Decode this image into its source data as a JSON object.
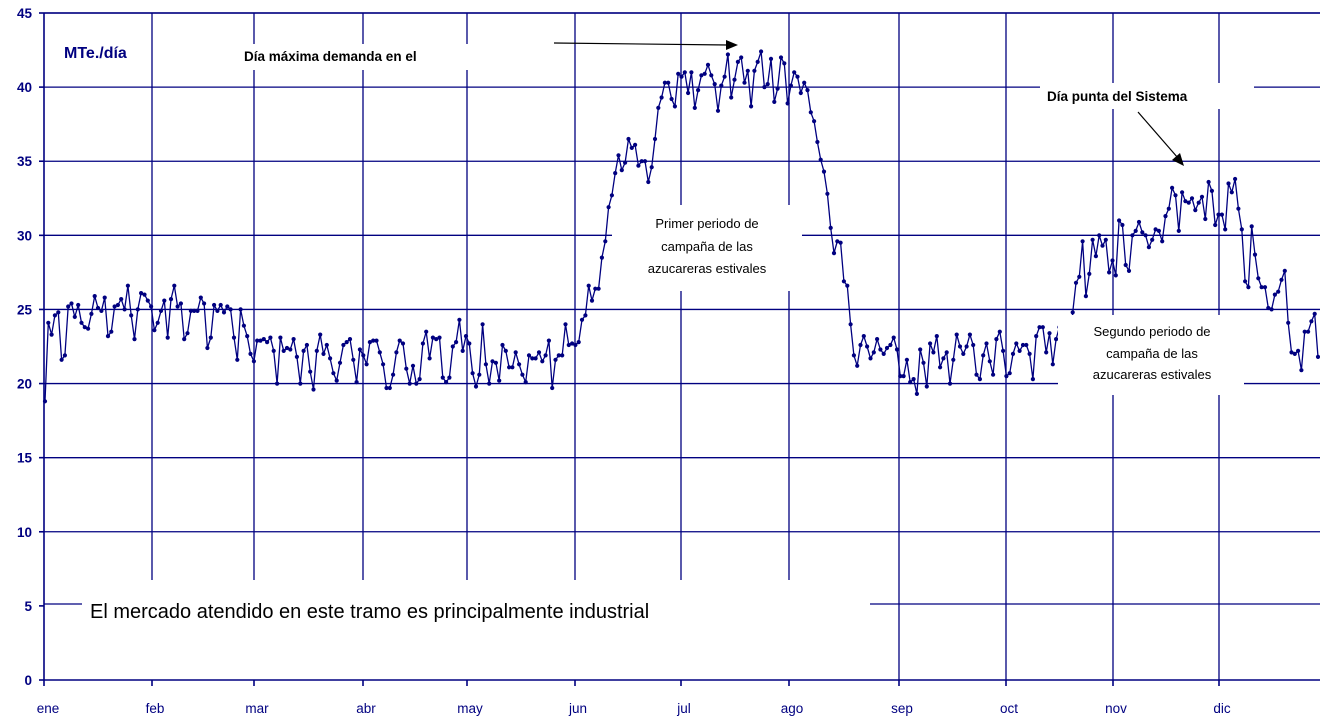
{
  "chart_data": {
    "type": "line",
    "title": "",
    "ylabel": "MTe./día",
    "xlabel": "",
    "ylim": [
      0,
      45
    ],
    "yticks": [
      0,
      5,
      10,
      15,
      20,
      25,
      30,
      35,
      40,
      45
    ],
    "categories": [
      "ene",
      "feb",
      "mar",
      "abr",
      "may",
      "jun",
      "jul",
      "ago",
      "sep",
      "oct",
      "nov",
      "dic"
    ],
    "grid": true,
    "legend": "none",
    "series": [
      {
        "daily_values_by_month": {
          "ene": [
            18.8,
            24.1,
            23.3,
            24.6,
            24.8,
            21.6,
            21.9,
            25.2,
            25.4,
            24.5,
            25.3,
            24.1,
            23.8,
            23.7,
            24.7,
            25.9,
            25.1,
            24.9,
            25.8,
            23.2,
            23.5,
            25.2,
            25.3,
            25.7,
            25.0,
            26.6,
            24.6,
            23.0,
            25.0,
            26.1,
            26.0
          ],
          "feb": [
            25.6,
            25.2,
            23.6,
            24.1,
            24.9,
            25.6,
            23.1,
            25.7,
            26.6,
            25.2,
            25.4,
            23.0,
            23.4,
            24.9,
            24.9,
            24.9,
            25.8,
            25.4,
            22.4,
            23.1,
            25.3,
            24.9,
            25.3
          ],
          "mar": [
            24.8,
            25.2,
            25.0,
            23.1,
            21.6,
            25.0,
            23.9,
            23.2,
            22.0,
            21.5,
            22.9,
            22.9,
            23.0,
            22.8,
            23.1,
            22.2,
            20.0,
            23.1,
            22.2,
            22.4,
            22.3,
            23.0,
            21.8,
            20.0,
            22.2,
            22.6,
            20.8,
            19.6,
            22.2,
            23.3,
            22.0
          ],
          "abr": [
            22.6,
            21.7,
            20.7,
            20.2,
            21.4,
            22.6,
            22.8,
            23.0,
            21.6,
            20.1,
            22.3,
            21.9,
            21.3,
            22.8,
            22.9,
            22.9,
            22.1,
            21.3,
            19.7,
            19.7,
            20.6,
            22.1,
            22.9,
            22.7,
            21.0,
            20.0,
            21.2,
            20.0,
            20.3,
            22.7
          ],
          "may": [
            23.5,
            21.7,
            23.1,
            23.0,
            23.1,
            20.4,
            20.1,
            20.4,
            22.5,
            22.8,
            24.3,
            22.2,
            23.2,
            22.7,
            20.7,
            19.8,
            20.6,
            24.0,
            21.3,
            20.0,
            21.5,
            21.4,
            20.2,
            22.6,
            22.2,
            21.1,
            21.1,
            22.1,
            21.3,
            20.6,
            20.1
          ],
          "jun": [
            21.9,
            21.7,
            21.7,
            22.1,
            21.5,
            21.9,
            22.9,
            19.7,
            21.6,
            21.9,
            21.9,
            24.0,
            22.6,
            22.7,
            22.6,
            22.8,
            24.3,
            24.6,
            26.6,
            25.6,
            26.4,
            26.4,
            28.5,
            29.6,
            31.9,
            32.7,
            34.2,
            35.4,
            34.4,
            34.9
          ],
          "jul": [
            36.5,
            35.9,
            36.1,
            34.7,
            35.0,
            35.0,
            33.6,
            34.6,
            36.5,
            38.6,
            39.3,
            40.3,
            40.3,
            39.2,
            38.7,
            40.9,
            40.7,
            41.0,
            39.6,
            41.0,
            38.6,
            39.8,
            40.8,
            40.9,
            41.5,
            40.8,
            40.2,
            38.4,
            40.1,
            40.7,
            42.2
          ],
          "ago": [
            39.3,
            40.5,
            41.7,
            42.0,
            40.3,
            41.1,
            38.7,
            41.1,
            41.7,
            42.4,
            40.0,
            40.2,
            41.9,
            39.0,
            39.9,
            42.0,
            41.6,
            38.9,
            40.1,
            41.0,
            40.7,
            39.6,
            40.3,
            39.8,
            38.3,
            37.7,
            36.3,
            35.1,
            34.3,
            32.8,
            30.5
          ],
          "sep": [
            28.8,
            29.6,
            29.5,
            26.9,
            26.6,
            24.0,
            21.9,
            21.2,
            22.6,
            23.2,
            22.5,
            21.7,
            22.1,
            23.0,
            22.3,
            22.0,
            22.4,
            22.6,
            23.1,
            22.3,
            20.5,
            20.5,
            21.6,
            20.1,
            20.3,
            19.3,
            22.3,
            21.4,
            19.8,
            22.7
          ],
          "oct": [
            22.1,
            23.2,
            21.1,
            21.7,
            22.1,
            20.0,
            21.6,
            23.3,
            22.5,
            22.0,
            22.5,
            23.3,
            22.6,
            20.6,
            20.3,
            21.9,
            22.7,
            21.5,
            20.6,
            23.0,
            23.5,
            22.2,
            20.5,
            20.7,
            22.0,
            22.7,
            22.2,
            22.6,
            22.6,
            22.0,
            20.3
          ],
          "nov": [
            23.2,
            23.8,
            23.8,
            22.1,
            23.4,
            21.3,
            23.0,
            23.8,
            23.7,
            19.6,
            21.3,
            24.8,
            26.8,
            27.2,
            29.6,
            25.9,
            27.4,
            29.7,
            28.6,
            30.0,
            29.3,
            29.7,
            27.5,
            28.3,
            27.3,
            31.0,
            30.7,
            28.0,
            27.6,
            30.0
          ],
          "dic": [
            30.3,
            30.9,
            30.2,
            30.0,
            29.2,
            29.7,
            30.4,
            30.3,
            29.6,
            31.3,
            31.8,
            33.2,
            32.7,
            30.3,
            32.9,
            32.3,
            32.2,
            32.5,
            31.7,
            32.2,
            32.6,
            31.1,
            33.6,
            33.0,
            30.7,
            31.4,
            31.4,
            30.4,
            33.5,
            32.9,
            33.8
          ],
          "ene_next": [
            31.8,
            30.4,
            26.9,
            26.5,
            30.6,
            28.7,
            27.1,
            26.5,
            26.5,
            25.1,
            25.0,
            26.0,
            26.2,
            27.0,
            27.6,
            24.1,
            22.1,
            22.0,
            22.2,
            20.9,
            23.5,
            23.5,
            24.2,
            24.7,
            21.8
          ]
        }
      }
    ],
    "annotations": [
      {
        "id": "unit",
        "text": "MTe./día"
      },
      {
        "id": "peak_demand",
        "text": "Día máxima demanda en el"
      },
      {
        "id": "system_peak",
        "text": "Día punta del Sistema"
      },
      {
        "id": "first_campaign",
        "lines": [
          "Primer periodo de",
          "campaña de las",
          "azucareras estivales"
        ]
      },
      {
        "id": "second_campaign",
        "lines": [
          "Segundo periodo de",
          "campaña de las",
          "azucareras estivales"
        ]
      },
      {
        "id": "market_note",
        "text": "El mercado atendido en este tramo es principalmente industrial"
      }
    ],
    "colors": {
      "series": "#000080",
      "grid": "#000080",
      "text": "#000000"
    }
  }
}
